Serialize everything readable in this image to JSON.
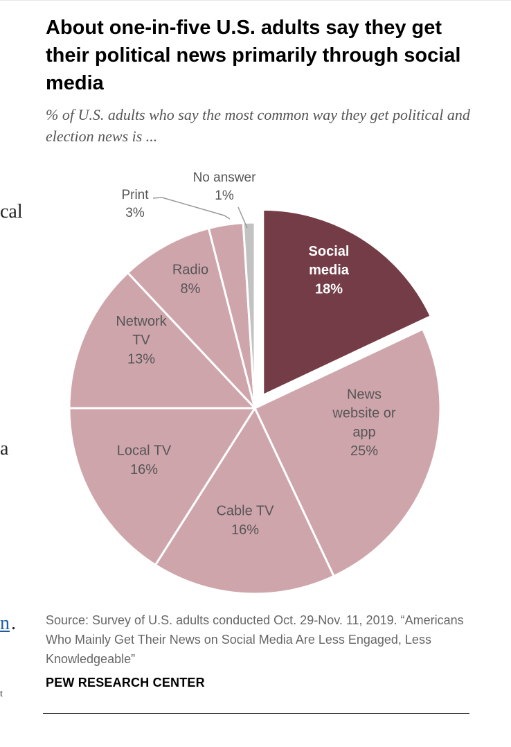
{
  "left_fragments": [
    "cal",
    "a",
    "n",
    ".",
    "t"
  ],
  "title": "About one-in-five U.S. adults say they get their political news primarily through social media",
  "subtitle": "% of U.S. adults who say the most common way they get political and election news is ...",
  "source": "Source: Survey of U.S. adults conducted Oct. 29-Nov. 11, 2019. “Americans Who Mainly Get Their News on Social Media Are Less Engaged, Less Knowledgeable”",
  "brand": "PEW RESEARCH CENTER",
  "colors": {
    "highlight": "#733c46",
    "slice": "#cfa5ac",
    "no_answer": "#c2c2c2",
    "label_dark": "#555555",
    "label_light": "#ffffff",
    "leader": "#999999"
  },
  "chart_data": {
    "type": "pie",
    "title": "About one-in-five U.S. adults say they get their political news primarily through social media",
    "subtitle": "% of U.S. adults who say the most common way they get political and election news is ...",
    "unit": "%",
    "slices": [
      {
        "label": "Social media",
        "lines": [
          "Social",
          "media"
        ],
        "value": 18,
        "text": "18%",
        "highlight": true
      },
      {
        "label": "News website or app",
        "lines": [
          "News",
          "website or",
          "app"
        ],
        "value": 25,
        "text": "25%"
      },
      {
        "label": "Cable TV",
        "lines": [
          "Cable TV"
        ],
        "value": 16,
        "text": "16%"
      },
      {
        "label": "Local TV",
        "lines": [
          "Local TV"
        ],
        "value": 16,
        "text": "16%"
      },
      {
        "label": "Network TV",
        "lines": [
          "Network",
          "TV"
        ],
        "value": 13,
        "text": "13%"
      },
      {
        "label": "Radio",
        "lines": [
          "Radio"
        ],
        "value": 8,
        "text": "8%"
      },
      {
        "label": "Print",
        "lines": [
          "Print"
        ],
        "value": 3,
        "text": "3%",
        "outside": true
      },
      {
        "label": "No answer",
        "lines": [
          "No answer"
        ],
        "value": 1,
        "text": "1%",
        "outside": true
      }
    ]
  }
}
